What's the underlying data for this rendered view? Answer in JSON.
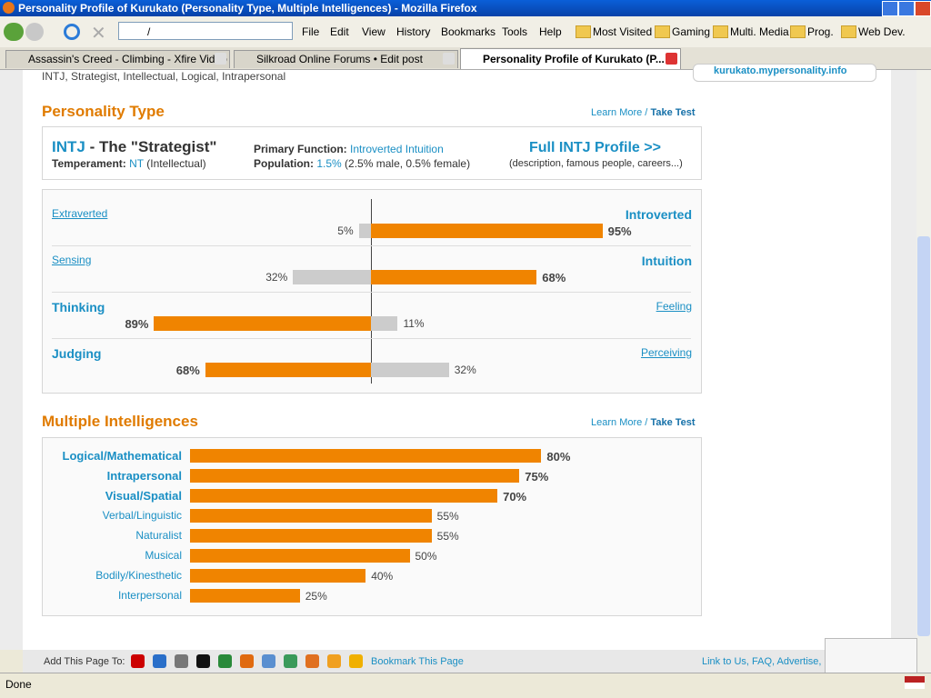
{
  "window": {
    "title": "Personality Profile of Kurukato (Personality Type, Multiple Intelligences) - Mozilla Firefox"
  },
  "toolbar": {
    "address": "/",
    "menu": [
      "File",
      "Edit",
      "View",
      "History",
      "Bookmarks",
      "Tools",
      "Help"
    ],
    "bookmarks": [
      "Most Visited",
      "Gaming",
      "Multi. Media",
      "Prog.",
      "Web Dev."
    ]
  },
  "tabs": [
    "Assassin's Creed - Climbing - Xfire Video",
    "Silkroad Online Forums • Edit post",
    "Personality Profile of Kurukato (P..."
  ],
  "page": {
    "summary_line": "INTJ, Strategist, Intellectual, Logical, Intrapersonal",
    "site_link": "kurukato.mypersonality.info",
    "personality": {
      "heading": "Personality Type",
      "learn_more": "Learn More /",
      "take_test": "Take Test",
      "type": "INTJ",
      "type_name": " - The \"Strategist\"",
      "temperament_label": "Temperament:",
      "temperament": "NT",
      "temperament_note": "(Intellectual)",
      "primary_label": "Primary Function:",
      "primary": "Introverted Intuition",
      "population_label": "Population:",
      "population": "1.5%",
      "population_note": "(2.5% male, 0.5% female)",
      "profile_link": "Full INTJ Profile >>",
      "profile_note": "(description, famous people, careers...)",
      "dichotomies": [
        {
          "left": "Extraverted",
          "right": "Introverted",
          "left_value": 5,
          "right_value": 95,
          "left_label": "5%",
          "right_label": "95%"
        },
        {
          "left": "Sensing",
          "right": "Intuition",
          "left_value": 32,
          "right_value": 68,
          "left_label": "32%",
          "right_label": "68%"
        },
        {
          "left": "Thinking",
          "right": "Feeling",
          "left_value": 89,
          "right_value": 11,
          "left_label": "89%",
          "right_label": "11%"
        },
        {
          "left": "Judging",
          "right": "Perceiving",
          "left_value": 68,
          "right_value": 32,
          "left_label": "68%",
          "right_label": "32%"
        }
      ]
    },
    "intelligences": {
      "heading": "Multiple Intelligences",
      "learn_more": "Learn More /",
      "take_test": "Take Test",
      "items": [
        {
          "name": "Logical/Mathematical",
          "value": 80,
          "label": "80%"
        },
        {
          "name": "Intrapersonal",
          "value": 75,
          "label": "75%"
        },
        {
          "name": "Visual/Spatial",
          "value": 70,
          "label": "70%"
        },
        {
          "name": "Verbal/Linguistic",
          "value": 55,
          "label": "55%"
        },
        {
          "name": "Naturalist",
          "value": 55,
          "label": "55%"
        },
        {
          "name": "Musical",
          "value": 50,
          "label": "50%"
        },
        {
          "name": "Bodily/Kinesthetic",
          "value": 40,
          "label": "40%"
        },
        {
          "name": "Interpersonal",
          "value": 25,
          "label": "25%"
        }
      ]
    },
    "footer": {
      "add_label": "Add This Page To:",
      "bookmark": "Bookmark This Page",
      "links": "Link to Us, FAQ, Advertise, Contact Us"
    }
  },
  "status": "Done"
}
